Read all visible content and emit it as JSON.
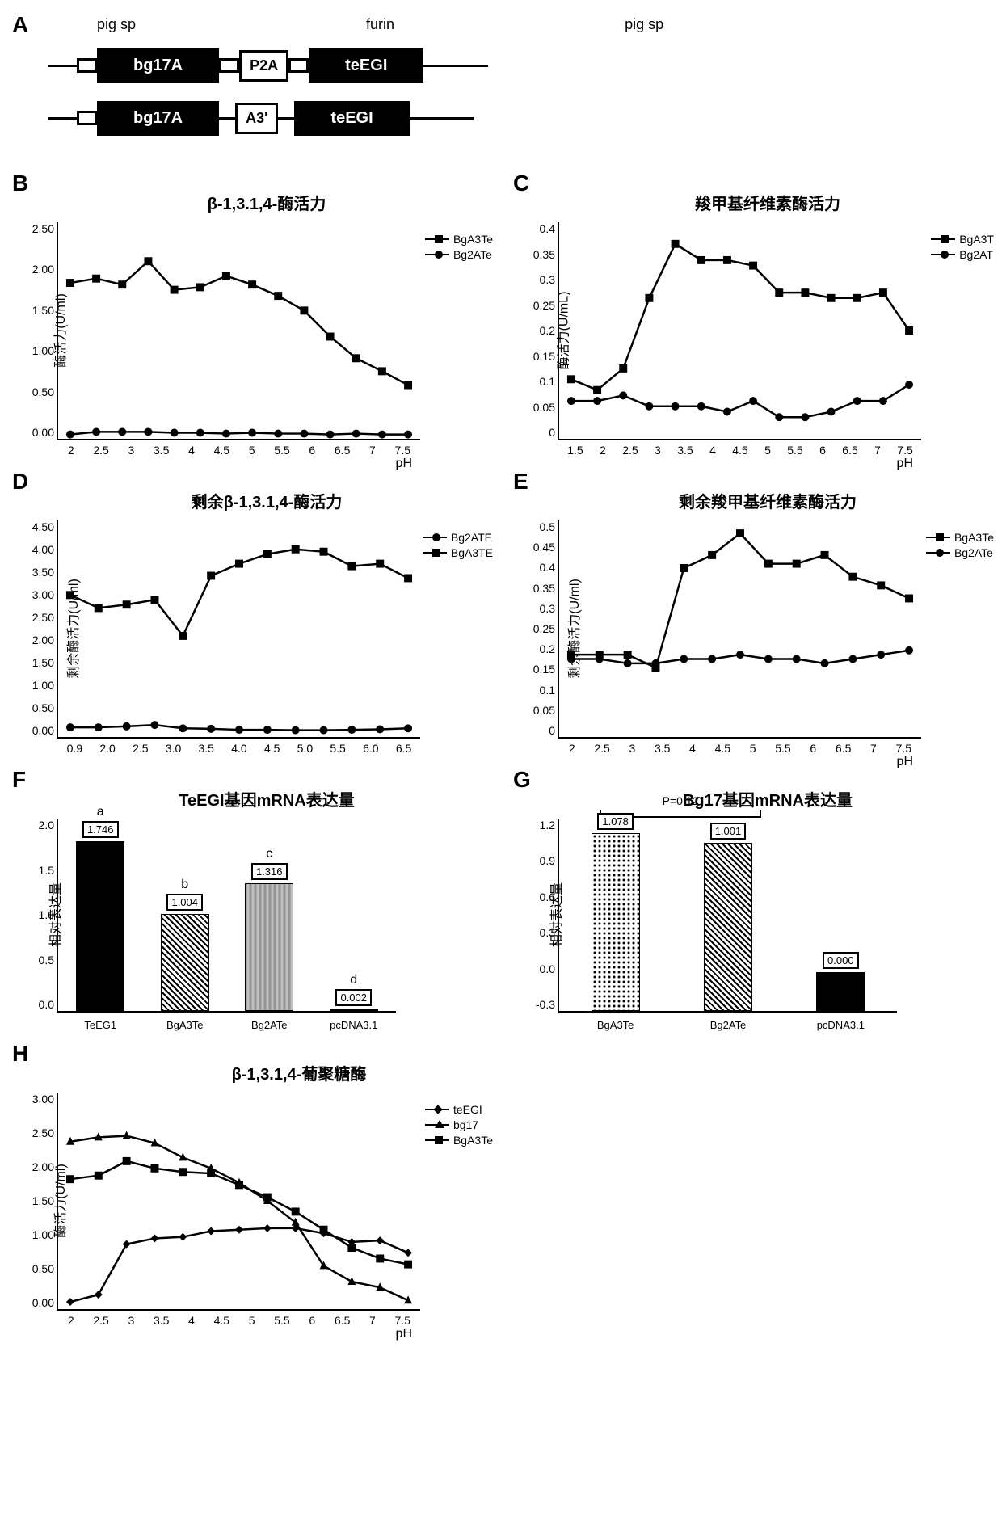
{
  "panels": {
    "A": {
      "label": "A",
      "labels_top": [
        "pig sp",
        "furin",
        "pig sp"
      ],
      "construct1": {
        "sp1": "",
        "gene1": "bg17A",
        "furin_box": "",
        "p2a": "P2A",
        "sp2": "",
        "gene2": "teEGI"
      },
      "construct2": {
        "sp1": "",
        "gene1": "bg17A",
        "a3": "A3'",
        "gene2": "teEGI"
      }
    },
    "B": {
      "label": "B",
      "title": "β-1,3.1,4-酶活力",
      "y_label": "酶活力(U/ml)",
      "x_label": "pH",
      "y_ticks": [
        "0.00",
        "0.50",
        "1.00",
        "1.50",
        "2.00",
        "2.50"
      ],
      "x_ticks": [
        "2",
        "2.5",
        "3",
        "3.5",
        "4",
        "4.5",
        "5",
        "5.5",
        "6",
        "6.5",
        "7",
        "7.5"
      ],
      "ymax": 2.5,
      "legend": [
        {
          "name": "BgA3Te",
          "marker": "square"
        },
        {
          "name": "Bg2ATe",
          "marker": "circle"
        }
      ],
      "series": {
        "BgA3Te": [
          1.8,
          1.85,
          1.78,
          2.05,
          1.72,
          1.75,
          1.88,
          1.78,
          1.65,
          1.48,
          1.18,
          0.93,
          0.78,
          0.62
        ],
        "Bg2ATe": [
          0.05,
          0.08,
          0.08,
          0.08,
          0.07,
          0.07,
          0.06,
          0.07,
          0.06,
          0.06,
          0.05,
          0.06,
          0.05,
          0.05
        ]
      },
      "line_color": "#000000",
      "line_width": 2.5
    },
    "C": {
      "label": "C",
      "title": "羧甲基纤维素酶活力",
      "y_label": "酶活力(U/mL)",
      "x_label": "pH",
      "y_ticks": [
        "0",
        "0.05",
        "0.1",
        "0.15",
        "0.2",
        "0.25",
        "0.3",
        "0.35",
        "0.4"
      ],
      "x_ticks": [
        "1.5",
        "2",
        "2.5",
        "3",
        "3.5",
        "4",
        "4.5",
        "5",
        "5.5",
        "6",
        "6.5",
        "7",
        "7.5"
      ],
      "ymax": 0.4,
      "legend": [
        {
          "name": "BgA3T",
          "marker": "square"
        },
        {
          "name": "Bg2AT",
          "marker": "circle"
        }
      ],
      "series": {
        "BgA3T": [
          0.11,
          0.09,
          0.13,
          0.26,
          0.36,
          0.33,
          0.33,
          0.32,
          0.27,
          0.27,
          0.26,
          0.26,
          0.27,
          0.2
        ],
        "Bg2AT": [
          0.07,
          0.07,
          0.08,
          0.06,
          0.06,
          0.06,
          0.05,
          0.07,
          0.04,
          0.04,
          0.05,
          0.07,
          0.07,
          0.1
        ]
      },
      "line_color": "#000000",
      "line_width": 2.5
    },
    "D": {
      "label": "D",
      "title": "剩余β-1,3.1,4-酶活力",
      "y_label": "剩余酶活力(U/ml)",
      "x_label": "",
      "y_ticks": [
        "0.00",
        "0.50",
        "1.00",
        "1.50",
        "2.00",
        "2.50",
        "3.00",
        "3.50",
        "4.00",
        "4.50"
      ],
      "x_ticks": [
        "0.9",
        "2.0",
        "2.5",
        "3.0",
        "3.5",
        "4.0",
        "4.5",
        "5.0",
        "5.5",
        "6.0",
        "6.5"
      ],
      "ymax": 4.5,
      "legend": [
        {
          "name": "Bg2ATE",
          "marker": "circle"
        },
        {
          "name": "BgA3TE",
          "marker": "square"
        }
      ],
      "series": {
        "BgA3TE": [
          2.95,
          2.68,
          2.75,
          2.85,
          2.1,
          3.35,
          3.6,
          3.8,
          3.9,
          3.85,
          3.55,
          3.6,
          3.3
        ],
        "Bg2ATE": [
          0.2,
          0.2,
          0.22,
          0.25,
          0.18,
          0.17,
          0.15,
          0.15,
          0.14,
          0.14,
          0.15,
          0.16,
          0.18
        ]
      },
      "line_color": "#000000",
      "line_width": 2.5
    },
    "E": {
      "label": "E",
      "title": "剩余羧甲基纤维素酶活力",
      "y_label": "剩余酶活力(U/ml)",
      "x_label": "pH",
      "y_ticks": [
        "0",
        "0.05",
        "0.1",
        "0.15",
        "0.2",
        "0.25",
        "0.3",
        "0.35",
        "0.4",
        "0.45",
        "0.5"
      ],
      "x_ticks": [
        "2",
        "2.5",
        "3",
        "3.5",
        "4",
        "4.5",
        "5",
        "5.5",
        "6",
        "6.5",
        "7",
        "7.5"
      ],
      "ymax": 0.5,
      "legend": [
        {
          "name": "BgA3Te",
          "marker": "square"
        },
        {
          "name": "Bg2ATe",
          "marker": "circle"
        }
      ],
      "series": {
        "BgA3Te": [
          0.19,
          0.19,
          0.19,
          0.16,
          0.39,
          0.42,
          0.47,
          0.4,
          0.4,
          0.42,
          0.37,
          0.35,
          0.32
        ],
        "Bg2ATe": [
          0.18,
          0.18,
          0.17,
          0.17,
          0.18,
          0.18,
          0.19,
          0.18,
          0.18,
          0.17,
          0.18,
          0.19,
          0.2
        ]
      },
      "line_color": "#000000",
      "line_width": 2.5
    },
    "F": {
      "label": "F",
      "title": "TeEGI基因mRNA表达量",
      "y_label": "相对表达量",
      "y_ticks": [
        "0.0",
        "0.5",
        "1.0",
        "1.5",
        "2.0"
      ],
      "ymax": 2.0,
      "bars": [
        {
          "name": "TeEG1",
          "value": 1.746,
          "value_label": "1.746",
          "letter": "a",
          "fill": "solid"
        },
        {
          "name": "BgA3Te",
          "value": 1.004,
          "value_label": "1.004",
          "letter": "b",
          "fill": "hatched"
        },
        {
          "name": "Bg2ATe",
          "value": 1.316,
          "value_label": "1.316",
          "letter": "c",
          "fill": "wavy"
        },
        {
          "name": "pcDNA3.1",
          "value": 0.002,
          "value_label": "0.002",
          "letter": "d",
          "fill": "solid"
        }
      ]
    },
    "G": {
      "label": "G",
      "title": "Bg17基因mRNA表达量",
      "y_label": "相对表达量",
      "y_ticks": [
        "-0.3",
        "0.0",
        "0.3",
        "0.6",
        "0.9",
        "1.2"
      ],
      "ymin": -0.3,
      "ymax": 1.2,
      "pvalue": "P=0.12",
      "bars": [
        {
          "name": "BgA3Te",
          "value": 1.078,
          "value_label": "1.078",
          "fill": "dotted"
        },
        {
          "name": "Bg2ATe",
          "value": 1.001,
          "value_label": "1.001",
          "fill": "hatched"
        },
        {
          "name": "pcDNA3.1",
          "value": 0.0,
          "value_label": "0.000",
          "fill": "solid"
        }
      ]
    },
    "H": {
      "label": "H",
      "title": "β-1,3.1,4-葡聚糖酶",
      "y_label": "酶活力(U/ml)",
      "x_label": "pH",
      "y_ticks": [
        "0.00",
        "0.50",
        "1.00",
        "1.50",
        "2.00",
        "2.50",
        "3.00"
      ],
      "x_ticks": [
        "2",
        "2.5",
        "3",
        "3.5",
        "4",
        "4.5",
        "5",
        "5.5",
        "6",
        "6.5",
        "7",
        "7.5"
      ],
      "ymax": 3.0,
      "legend": [
        {
          "name": "teEGI",
          "marker": "diamond"
        },
        {
          "name": "bg17",
          "marker": "triangle"
        },
        {
          "name": "BgA3Te",
          "marker": "square"
        }
      ],
      "series": {
        "teEGI": [
          0.1,
          0.2,
          0.9,
          0.98,
          1.0,
          1.08,
          1.1,
          1.12,
          1.12,
          1.05,
          0.93,
          0.95,
          0.78
        ],
        "bg17": [
          2.32,
          2.38,
          2.4,
          2.3,
          2.1,
          1.95,
          1.75,
          1.5,
          1.2,
          0.6,
          0.38,
          0.3,
          0.12
        ],
        "BgA3Te": [
          1.8,
          1.85,
          2.05,
          1.95,
          1.9,
          1.88,
          1.72,
          1.55,
          1.35,
          1.1,
          0.85,
          0.7,
          0.62
        ]
      },
      "line_color": "#000000",
      "line_width": 2.5
    }
  }
}
